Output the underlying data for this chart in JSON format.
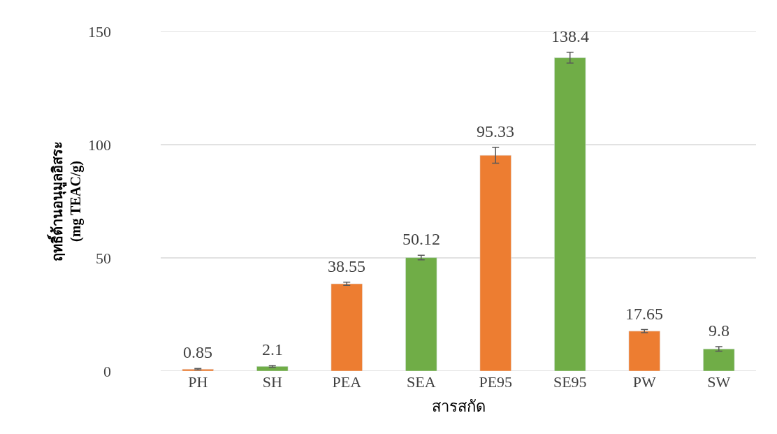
{
  "chart_data": {
    "type": "bar",
    "xlabel": "สารสกัด",
    "ylabel": "ฤทธิ์ต้านอนุมูลอิสระ\n(mg TEAC/g)",
    "categories": [
      "PH",
      "SH",
      "PEA",
      "SEA",
      "PE95",
      "SE95",
      "PW",
      "SW"
    ],
    "values": [
      0.85,
      2.1,
      38.55,
      50.12,
      95.33,
      138.4,
      17.65,
      9.8
    ],
    "colors": [
      "#ed7d31",
      "#70ad47",
      "#ed7d31",
      "#70ad47",
      "#ed7d31",
      "#70ad47",
      "#ed7d31",
      "#70ad47"
    ],
    "errors": [
      0.3,
      0.4,
      0.7,
      1,
      3.5,
      2.4,
      0.7,
      1
    ],
    "ylim": [
      0,
      150
    ],
    "yticks": [
      0,
      50,
      100,
      150
    ],
    "grid": "y",
    "data_labels": true
  }
}
